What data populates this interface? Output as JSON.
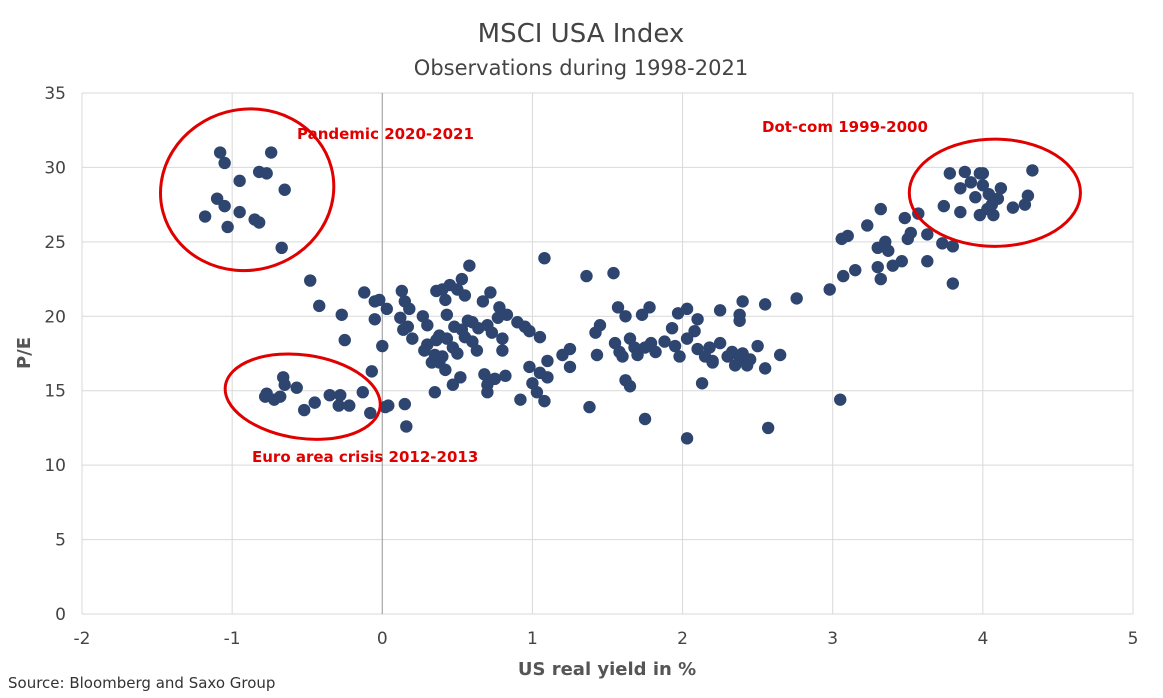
{
  "chart_data": {
    "type": "scatter",
    "title": "MSCI USA Index",
    "subtitle": "Observations during 1998-2021",
    "xlabel": "US real yield in %",
    "ylabel": "P/E",
    "xlim": [
      -2,
      5
    ],
    "ylim": [
      0,
      35
    ],
    "x_ticks": [
      -2,
      -1,
      0,
      1,
      2,
      3,
      4,
      5
    ],
    "y_ticks": [
      0,
      5,
      10,
      15,
      20,
      25,
      30,
      35
    ],
    "grid": true,
    "colors": {
      "points": "#2e4570",
      "annotation": "#e00000",
      "grid": "#d9d9d9",
      "zero_line": "#a6a6a6"
    },
    "annotations": [
      {
        "label": "Pandemic 2020-2021",
        "region": {
          "cx": -0.9,
          "cy": 28.5,
          "rx": 0.58,
          "ry": 5.4
        }
      },
      {
        "label": "Dot-com 1999-2000",
        "region": {
          "cx": 4.08,
          "cy": 28.3,
          "rx": 0.57,
          "ry": 3.6
        }
      },
      {
        "label": "Euro area crisis 2012-2013",
        "region": {
          "cx": -0.53,
          "cy": 14.6,
          "rx": 0.52,
          "ry": 2.8
        }
      }
    ],
    "points": [
      [
        -1.08,
        31.0
      ],
      [
        -1.05,
        30.3
      ],
      [
        -0.82,
        29.7
      ],
      [
        -0.74,
        31.0
      ],
      [
        -0.77,
        29.6
      ],
      [
        -0.95,
        29.1
      ],
      [
        -1.1,
        27.9
      ],
      [
        -0.65,
        28.5
      ],
      [
        -1.05,
        27.4
      ],
      [
        -0.95,
        27.0
      ],
      [
        -1.18,
        26.7
      ],
      [
        -0.85,
        26.5
      ],
      [
        -0.82,
        26.3
      ],
      [
        -1.03,
        26.0
      ],
      [
        -0.67,
        24.6
      ],
      [
        -0.48,
        22.4
      ],
      [
        -0.42,
        20.7
      ],
      [
        -0.27,
        20.1
      ],
      [
        -0.25,
        18.4
      ],
      [
        -0.12,
        21.6
      ],
      [
        -0.05,
        21.0
      ],
      [
        -0.02,
        21.1
      ],
      [
        0.03,
        20.5
      ],
      [
        -0.05,
        19.8
      ],
      [
        0.0,
        18.0
      ],
      [
        -0.07,
        16.3
      ],
      [
        -0.77,
        14.8
      ],
      [
        -0.78,
        14.6
      ],
      [
        -0.72,
        14.4
      ],
      [
        -0.68,
        14.6
      ],
      [
        -0.66,
        15.9
      ],
      [
        -0.65,
        15.4
      ],
      [
        -0.57,
        15.2
      ],
      [
        -0.52,
        13.7
      ],
      [
        -0.45,
        14.2
      ],
      [
        -0.35,
        14.7
      ],
      [
        -0.28,
        14.7
      ],
      [
        -0.29,
        14.0
      ],
      [
        -0.22,
        14.0
      ],
      [
        -0.13,
        14.9
      ],
      [
        -0.08,
        13.5
      ],
      [
        0.02,
        13.9
      ],
      [
        0.04,
        14.0
      ],
      [
        0.15,
        14.1
      ],
      [
        0.16,
        12.6
      ],
      [
        0.13,
        21.7
      ],
      [
        0.15,
        21.0
      ],
      [
        0.18,
        20.5
      ],
      [
        0.12,
        19.9
      ],
      [
        0.17,
        19.3
      ],
      [
        0.14,
        19.1
      ],
      [
        0.2,
        18.5
      ],
      [
        0.27,
        20.0
      ],
      [
        0.3,
        19.4
      ],
      [
        0.3,
        18.1
      ],
      [
        0.28,
        17.7
      ],
      [
        0.36,
        18.4
      ],
      [
        0.35,
        17.4
      ],
      [
        0.33,
        16.9
      ],
      [
        0.36,
        21.7
      ],
      [
        0.4,
        21.8
      ],
      [
        0.42,
        21.1
      ],
      [
        0.45,
        22.1
      ],
      [
        0.5,
        21.8
      ],
      [
        0.53,
        22.5
      ],
      [
        0.55,
        21.4
      ],
      [
        0.58,
        23.4
      ],
      [
        0.43,
        20.1
      ],
      [
        0.48,
        19.3
      ],
      [
        0.53,
        19.1
      ],
      [
        0.57,
        19.7
      ],
      [
        0.6,
        19.6
      ],
      [
        0.64,
        19.2
      ],
      [
        0.67,
        21.0
      ],
      [
        0.72,
        21.6
      ],
      [
        0.78,
        20.6
      ],
      [
        0.77,
        19.9
      ],
      [
        0.83,
        20.1
      ],
      [
        0.9,
        19.6
      ],
      [
        0.38,
        18.7
      ],
      [
        0.43,
        18.5
      ],
      [
        0.47,
        17.9
      ],
      [
        0.5,
        17.5
      ],
      [
        0.55,
        18.6
      ],
      [
        0.6,
        18.3
      ],
      [
        0.63,
        17.7
      ],
      [
        0.7,
        19.4
      ],
      [
        0.73,
        18.9
      ],
      [
        0.8,
        18.5
      ],
      [
        0.8,
        17.7
      ],
      [
        0.38,
        16.9
      ],
      [
        0.4,
        17.3
      ],
      [
        0.42,
        16.4
      ],
      [
        0.47,
        15.4
      ],
      [
        0.52,
        15.9
      ],
      [
        0.35,
        14.9
      ],
      [
        0.68,
        16.1
      ],
      [
        0.7,
        15.4
      ],
      [
        0.7,
        14.9
      ],
      [
        0.75,
        15.8
      ],
      [
        0.82,
        16.0
      ],
      [
        0.92,
        14.4
      ],
      [
        0.95,
        19.3
      ],
      [
        0.98,
        19.0
      ],
      [
        1.05,
        18.6
      ],
      [
        1.1,
        17.0
      ],
      [
        0.98,
        16.6
      ],
      [
        1.05,
        16.2
      ],
      [
        1.0,
        15.5
      ],
      [
        1.03,
        14.9
      ],
      [
        1.08,
        14.3
      ],
      [
        1.2,
        17.4
      ],
      [
        1.25,
        17.8
      ],
      [
        1.25,
        16.6
      ],
      [
        1.08,
        23.9
      ],
      [
        1.1,
        15.9
      ],
      [
        1.36,
        22.7
      ],
      [
        1.54,
        22.9
      ],
      [
        1.42,
        18.9
      ],
      [
        1.45,
        19.4
      ],
      [
        1.43,
        17.4
      ],
      [
        1.38,
        13.9
      ],
      [
        1.57,
        20.6
      ],
      [
        1.62,
        20.0
      ],
      [
        1.55,
        18.2
      ],
      [
        1.58,
        17.6
      ],
      [
        1.6,
        17.3
      ],
      [
        1.65,
        18.5
      ],
      [
        1.68,
        17.9
      ],
      [
        1.7,
        17.4
      ],
      [
        1.73,
        20.1
      ],
      [
        1.78,
        20.6
      ],
      [
        1.75,
        17.9
      ],
      [
        1.79,
        18.2
      ],
      [
        1.82,
        17.6
      ],
      [
        1.62,
        15.7
      ],
      [
        1.65,
        15.3
      ],
      [
        1.75,
        13.1
      ],
      [
        1.88,
        18.3
      ],
      [
        1.93,
        19.2
      ],
      [
        1.95,
        18.0
      ],
      [
        1.98,
        17.3
      ],
      [
        1.97,
        20.2
      ],
      [
        2.03,
        20.5
      ],
      [
        2.03,
        18.5
      ],
      [
        2.08,
        19.0
      ],
      [
        2.1,
        17.8
      ],
      [
        2.15,
        17.3
      ],
      [
        2.18,
        17.9
      ],
      [
        2.2,
        17.0
      ],
      [
        2.25,
        18.2
      ],
      [
        2.2,
        16.9
      ],
      [
        2.3,
        17.3
      ],
      [
        2.33,
        17.6
      ],
      [
        2.35,
        16.7
      ],
      [
        2.38,
        17.2
      ],
      [
        2.4,
        17.5
      ],
      [
        2.43,
        16.7
      ],
      [
        2.45,
        17.1
      ],
      [
        2.03,
        11.8
      ],
      [
        2.1,
        19.8
      ],
      [
        2.13,
        15.5
      ],
      [
        2.25,
        20.4
      ],
      [
        2.38,
        20.1
      ],
      [
        2.38,
        19.7
      ],
      [
        2.4,
        21.0
      ],
      [
        2.5,
        18.0
      ],
      [
        2.55,
        16.5
      ],
      [
        2.55,
        20.8
      ],
      [
        2.57,
        12.5
      ],
      [
        2.65,
        17.4
      ],
      [
        2.76,
        21.2
      ],
      [
        2.98,
        21.8
      ],
      [
        3.05,
        14.4
      ],
      [
        3.06,
        25.2
      ],
      [
        3.1,
        25.4
      ],
      [
        3.07,
        22.7
      ],
      [
        3.15,
        23.1
      ],
      [
        3.23,
        26.1
      ],
      [
        3.3,
        24.6
      ],
      [
        3.3,
        23.3
      ],
      [
        3.32,
        22.5
      ],
      [
        3.32,
        27.2
      ],
      [
        3.35,
        25.0
      ],
      [
        3.37,
        24.4
      ],
      [
        3.4,
        23.4
      ],
      [
        3.46,
        23.7
      ],
      [
        3.48,
        26.6
      ],
      [
        3.5,
        25.2
      ],
      [
        3.52,
        25.6
      ],
      [
        3.57,
        26.9
      ],
      [
        3.63,
        23.7
      ],
      [
        3.63,
        25.5
      ],
      [
        3.73,
        24.9
      ],
      [
        3.8,
        24.7
      ],
      [
        3.8,
        22.2
      ],
      [
        3.74,
        27.4
      ],
      [
        3.78,
        29.6
      ],
      [
        3.88,
        29.7
      ],
      [
        3.92,
        29.0
      ],
      [
        3.98,
        29.6
      ],
      [
        4.0,
        29.6
      ],
      [
        4.04,
        28.2
      ],
      [
        4.1,
        27.9
      ],
      [
        4.12,
        28.6
      ],
      [
        4.2,
        27.3
      ],
      [
        4.33,
        29.8
      ],
      [
        4.3,
        28.1
      ],
      [
        4.28,
        27.5
      ],
      [
        3.95,
        28.0
      ],
      [
        3.85,
        27.0
      ],
      [
        4.03,
        27.2
      ],
      [
        4.07,
        26.8
      ],
      [
        3.98,
        26.8
      ],
      [
        4.0,
        28.8
      ],
      [
        3.85,
        28.6
      ],
      [
        4.06,
        27.5
      ]
    ],
    "source": "Source: Bloomberg and Saxo Group"
  }
}
